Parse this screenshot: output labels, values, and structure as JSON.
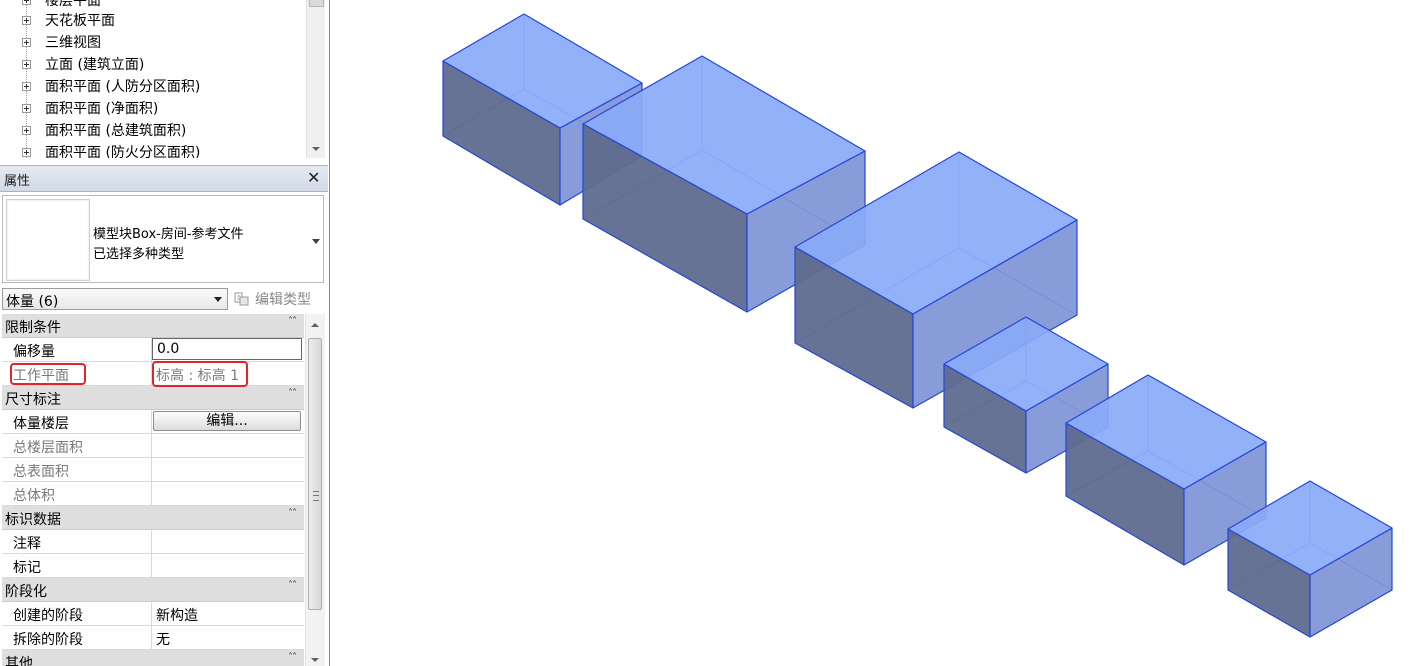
{
  "project_browser": {
    "items": [
      {
        "label": "楼层平面"
      },
      {
        "label": "天花板平面"
      },
      {
        "label": "三维视图"
      },
      {
        "label": "立面 (建筑立面)"
      },
      {
        "label": "面积平面 (人防分区面积)"
      },
      {
        "label": "面积平面 (净面积)"
      },
      {
        "label": "面积平面 (总建筑面积)"
      },
      {
        "label": "面积平面 (防火分区面积)"
      }
    ]
  },
  "properties": {
    "title": "属性",
    "close_glyph": "✕",
    "type_selector": {
      "family": "模型块Box-房间-参考文件",
      "type": "已选择多种类型"
    },
    "filter": {
      "value": "体量 (6)"
    },
    "edit_type_label": "编辑类型",
    "groups": [
      {
        "label": "限制条件"
      },
      {
        "label": "尺寸标注"
      },
      {
        "label": "标识数据"
      },
      {
        "label": "阶段化"
      },
      {
        "label": "其他"
      }
    ],
    "constraints": {
      "offset_label": "偏移量",
      "offset_value": "0.0",
      "work_plane_label": "工作平面",
      "work_plane_value": "标高 : 标高 1"
    },
    "dimensions": {
      "mass_floors_label": "体量楼层",
      "mass_floors_button": "编辑...",
      "gross_floor_area_label": "总楼层面积",
      "gross_surface_area_label": "总表面积",
      "gross_volume_label": "总体积"
    },
    "identity": {
      "comments_label": "注释",
      "mark_label": "标记"
    },
    "phasing": {
      "phase_created_label": "创建的阶段",
      "phase_created_value": "新构造",
      "phase_demolished_label": "拆除的阶段",
      "phase_demolished_value": "无"
    },
    "collapse_glyph": "˄˄"
  },
  "colors": {
    "mass_top": "#8aaaf7",
    "mass_front": "#5f6b8e",
    "mass_side": "#7b91d6",
    "mass_edge": "#2545d8",
    "highlight": "#e0262b"
  }
}
